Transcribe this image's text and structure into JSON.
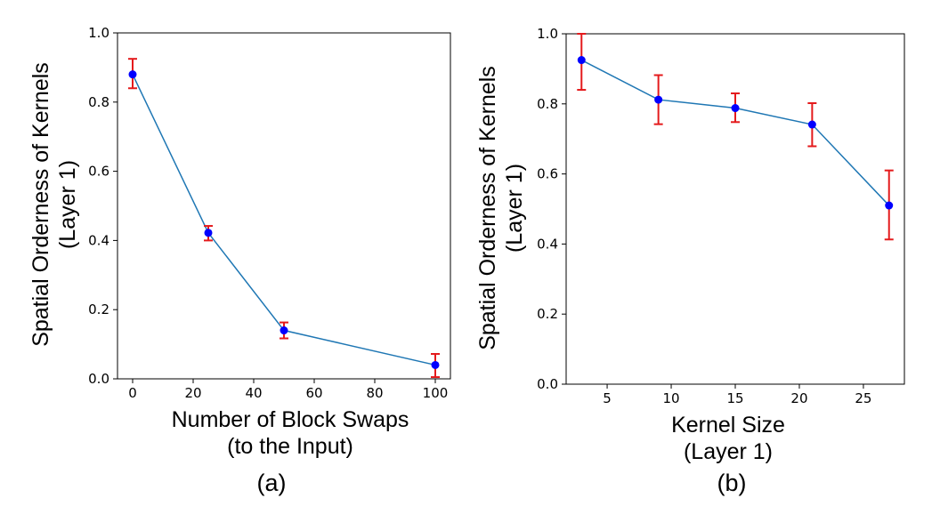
{
  "chart_data": [
    {
      "type": "line",
      "panel_label": "(a)",
      "title": "",
      "xlabel_lines": [
        "Number of Block Swaps",
        "(to the Input)"
      ],
      "ylabel_lines": [
        "Spatial Orderness of Kernels",
        "(Layer 1)"
      ],
      "xlim": [
        -5,
        105
      ],
      "ylim": [
        0.0,
        1.0
      ],
      "xticks": [
        0,
        20,
        40,
        60,
        80,
        100
      ],
      "yticks": [
        0.0,
        0.2,
        0.4,
        0.6,
        0.8,
        1.0
      ],
      "xtick_labels": [
        "0",
        "20",
        "40",
        "60",
        "80",
        "100"
      ],
      "ytick_labels": [
        "0.0",
        "0.2",
        "0.4",
        "0.6",
        "0.8",
        "1.0"
      ],
      "grid": false,
      "series": [
        {
          "name": "Spatial Orderness",
          "x": [
            0,
            25,
            50,
            100
          ],
          "y": [
            0.88,
            0.422,
            0.14,
            0.04
          ],
          "yerr_low": [
            0.84,
            0.4,
            0.117,
            0.005
          ],
          "yerr_high": [
            0.925,
            0.442,
            0.163,
            0.072
          ]
        }
      ]
    },
    {
      "type": "line",
      "panel_label": "(b)",
      "title": "",
      "xlabel_lines": [
        "Kernel Size",
        "(Layer 1)"
      ],
      "ylabel_lines": [
        "Spatial Orderness of Kernels",
        "(Layer 1)"
      ],
      "xlim": [
        1.8,
        28.2
      ],
      "ylim": [
        0.0,
        1.0
      ],
      "xticks": [
        5,
        10,
        15,
        20,
        25
      ],
      "yticks": [
        0.0,
        0.2,
        0.4,
        0.6,
        0.8,
        1.0
      ],
      "xtick_labels": [
        "5",
        "10",
        "15",
        "20",
        "25"
      ],
      "ytick_labels": [
        "0.0",
        "0.2",
        "0.4",
        "0.6",
        "0.8",
        "1.0"
      ],
      "grid": false,
      "series": [
        {
          "name": "Spatial Orderness",
          "x": [
            3,
            9,
            15,
            21,
            27
          ],
          "y": [
            0.925,
            0.812,
            0.788,
            0.741,
            0.51
          ],
          "yerr_low": [
            0.84,
            0.742,
            0.748,
            0.679,
            0.413
          ],
          "yerr_high": [
            1.0,
            0.882,
            0.83,
            0.802,
            0.61
          ]
        }
      ]
    }
  ],
  "colors": {
    "line": "#1f77b4",
    "marker": "#0000ff",
    "errorbar": "#e41a1c",
    "axes": "#000000"
  }
}
